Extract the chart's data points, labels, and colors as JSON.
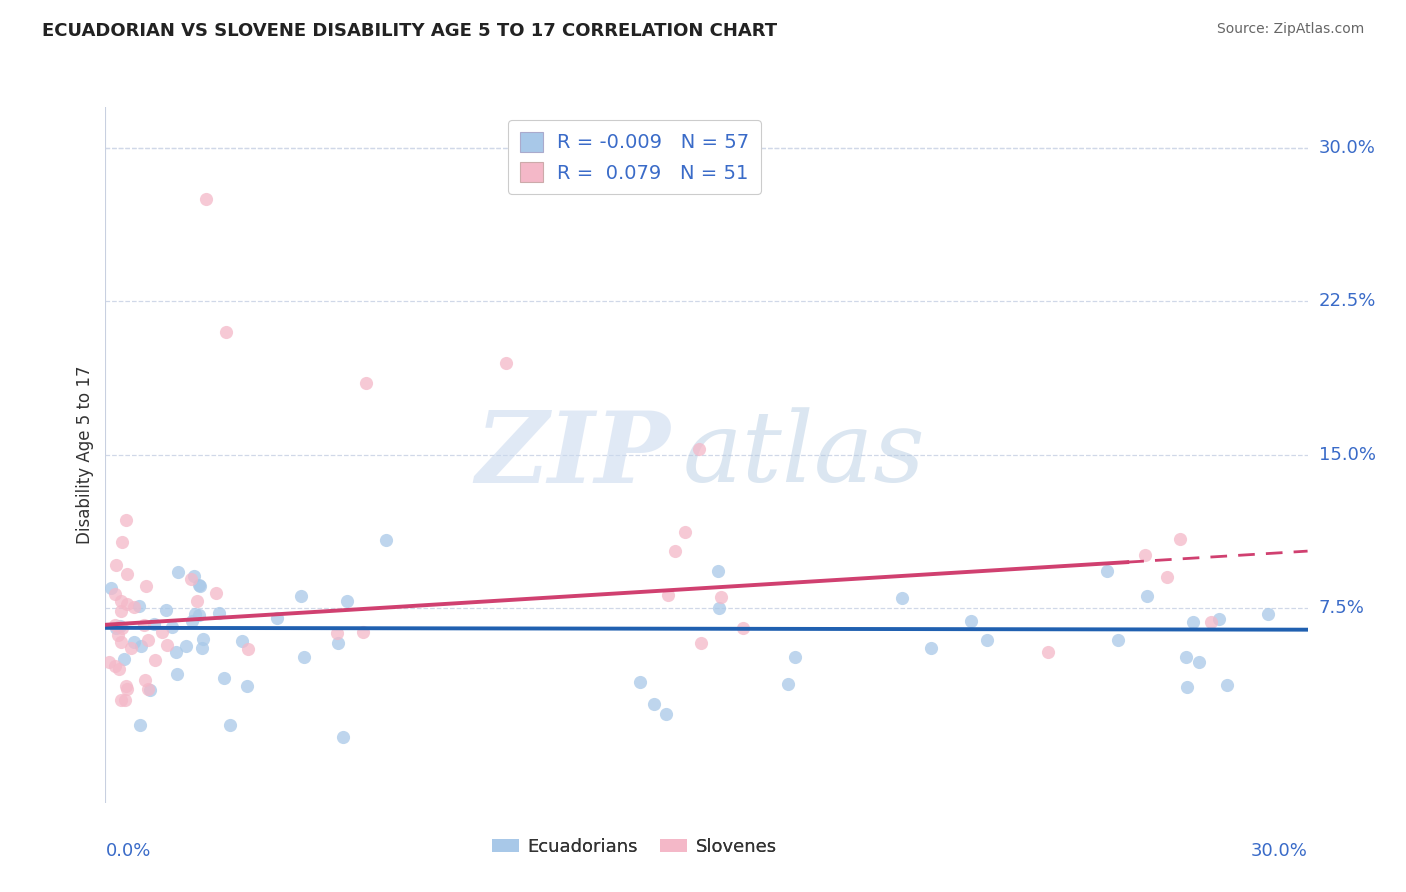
{
  "title": "ECUADORIAN VS SLOVENE DISABILITY AGE 5 TO 17 CORRELATION CHART",
  "source": "Source: ZipAtlas.com",
  "ylabel": "Disability Age 5 to 17",
  "ytick_labels": [
    "7.5%",
    "15.0%",
    "22.5%",
    "30.0%"
  ],
  "ytick_values": [
    0.075,
    0.15,
    0.225,
    0.3
  ],
  "xlim": [
    0.0,
    0.3
  ],
  "ylim": [
    -0.02,
    0.32
  ],
  "blue_scatter_color": "#a8c8e8",
  "pink_scatter_color": "#f4b8c8",
  "blue_line_color": "#2060b0",
  "pink_line_color": "#d04070",
  "legend_R_blue": "R = -0.009",
  "legend_N_blue": "N = 57",
  "legend_R_pink": "R =  0.079",
  "legend_N_pink": "N = 51",
  "watermark_zip": "ZIP",
  "watermark_atlas": "atlas",
  "blue_intercept": 0.0655,
  "blue_slope": -0.003,
  "pink_intercept": 0.067,
  "pink_slope": 0.12,
  "pink_line_solid_end": 0.255,
  "scatter_size": 90,
  "scatter_alpha": 0.75,
  "grid_color": "#d0d8e8",
  "border_color": "#c8d0e0"
}
